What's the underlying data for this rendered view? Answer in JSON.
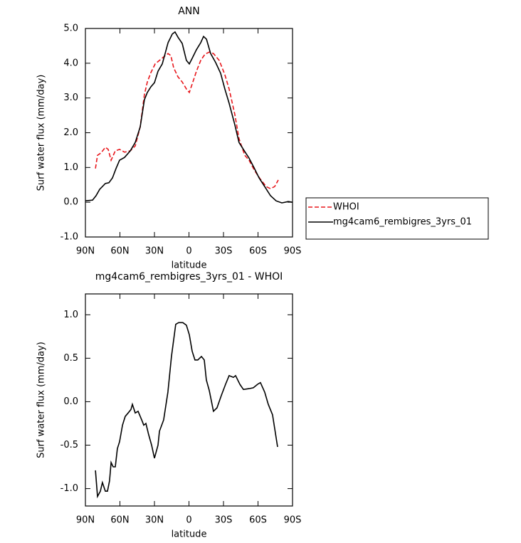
{
  "chart_data": [
    {
      "type": "line",
      "title": "ANN",
      "xlabel": "latitude",
      "ylabel": "Surf water flux (mm/day)",
      "xlim": [
        90,
        -90
      ],
      "xticks": [
        {
          "value": 90,
          "label": "90N"
        },
        {
          "value": 60,
          "label": "60N"
        },
        {
          "value": 30,
          "label": "30N"
        },
        0,
        {
          "value": -30,
          "label": "30S"
        },
        {
          "value": -60,
          "label": "60S"
        },
        {
          "value": -90,
          "label": "90S"
        }
      ],
      "ylim": [
        -1,
        5
      ],
      "yticks": [
        {
          "value": -1,
          "label": "-1.0"
        },
        {
          "value": 0,
          "label": "0.0"
        },
        {
          "value": 1,
          "label": "1.0"
        },
        {
          "value": 2,
          "label": "2.0"
        },
        {
          "value": 3,
          "label": "3.0"
        },
        {
          "value": 4,
          "label": "4.0"
        },
        {
          "value": 5,
          "label": "5.0"
        }
      ],
      "legend": "outside-right",
      "series": [
        {
          "name": "WHOI",
          "color": "#e8161b",
          "line_style": "dashed",
          "x": [
            81.3,
            79.5,
            76.4,
            72.7,
            70.2,
            67.7,
            64.0,
            60.3,
            56.0,
            51.0,
            46.7,
            42.4,
            38.7,
            36.2,
            33.1,
            29.4,
            25.7,
            22.0,
            18.2,
            15.8,
            13.3,
            9.6,
            5.9,
            2.2,
            -0.3,
            -2.8,
            -6.5,
            -10.2,
            -13.9,
            -17.6,
            -21.3,
            -26.3,
            -31.2,
            -34.9,
            -39.8,
            -43.5,
            -48.5,
            -52.2,
            -57.2,
            -62.1,
            -67.1,
            -70.8,
            -74.5,
            -77.6
          ],
          "values": [
            0.97,
            1.35,
            1.42,
            1.58,
            1.52,
            1.21,
            1.48,
            1.52,
            1.44,
            1.48,
            1.62,
            2.17,
            3.1,
            3.46,
            3.73,
            3.98,
            4.08,
            4.18,
            4.28,
            4.22,
            3.87,
            3.61,
            3.46,
            3.26,
            3.16,
            3.4,
            3.77,
            4.08,
            4.26,
            4.32,
            4.28,
            4.08,
            3.67,
            3.26,
            2.54,
            1.83,
            1.35,
            1.21,
            0.9,
            0.66,
            0.45,
            0.39,
            0.45,
            0.64
          ]
        },
        {
          "name": "mg4cam6_rembigres_3yrs_01",
          "color": "#000000",
          "line_style": "solid",
          "x": [
            90,
            83.8,
            80.7,
            77.6,
            72.7,
            69.6,
            66.5,
            63.4,
            60.3,
            56.0,
            51.0,
            46.7,
            42.4,
            38.7,
            36.2,
            33.1,
            30.0,
            26.9,
            23.2,
            20.7,
            18.2,
            14.5,
            12.1,
            9.6,
            5.9,
            2.2,
            -0.3,
            -2.8,
            -6.5,
            -10.2,
            -12.7,
            -15.2,
            -18.8,
            -23.2,
            -27.5,
            -31.2,
            -34.9,
            -39.8,
            -43.5,
            -48.5,
            -52.2,
            -56.6,
            -60.9,
            -65.8,
            -70.8,
            -75.7,
            -80.7,
            -86.3,
            -90
          ],
          "values": [
            0.04,
            0.06,
            0.19,
            0.37,
            0.54,
            0.56,
            0.7,
            0.97,
            1.21,
            1.29,
            1.48,
            1.72,
            2.17,
            2.95,
            3.16,
            3.32,
            3.44,
            3.77,
            3.98,
            4.28,
            4.59,
            4.84,
            4.9,
            4.75,
            4.57,
            4.08,
            3.98,
            4.14,
            4.39,
            4.59,
            4.77,
            4.69,
            4.28,
            4.02,
            3.71,
            3.26,
            2.85,
            2.24,
            1.72,
            1.46,
            1.27,
            0.99,
            0.7,
            0.45,
            0.19,
            0.04,
            -0.02,
            0.02,
            0.0
          ]
        }
      ]
    },
    {
      "type": "line",
      "title": "mg4cam6_rembigres_3yrs_01 - WHOI",
      "xlabel": "latitude",
      "ylabel": "Surf water flux (mm/day)",
      "xlim": [
        90,
        -90
      ],
      "xticks": [
        {
          "value": 90,
          "label": "90N"
        },
        {
          "value": 60,
          "label": "60N"
        },
        {
          "value": 30,
          "label": "30N"
        },
        0,
        {
          "value": -30,
          "label": "30S"
        },
        {
          "value": -60,
          "label": "60S"
        },
        {
          "value": -90,
          "label": "90S"
        }
      ],
      "ylim": [
        -1.2,
        1.24
      ],
      "yticks": [
        {
          "value": -1,
          "label": "-1.0"
        },
        -0.5,
        {
          "value": 0,
          "label": "0.0"
        },
        0.5,
        {
          "value": 1,
          "label": "1.0"
        }
      ],
      "color": "#000000",
      "x": [
        81.3,
        79.5,
        77.0,
        75.2,
        72.7,
        70.8,
        69.0,
        67.7,
        65.9,
        64.0,
        62.2,
        60.3,
        57.8,
        55.4,
        52.9,
        50.4,
        49.2,
        46.7,
        44.2,
        41.1,
        39.3,
        37.4,
        35.0,
        32.5,
        30.0,
        26.9,
        25.7,
        22.0,
        18.3,
        15.2,
        11.5,
        9.0,
        5.3,
        2.2,
        -0.3,
        -2.8,
        -5.2,
        -7.7,
        -10.8,
        -13.3,
        -15.1,
        -17.6,
        -21.3,
        -24.4,
        -28.1,
        -31.8,
        -34.9,
        -38.6,
        -40.5,
        -44.2,
        -47.3,
        -52.2,
        -55.9,
        -59.6,
        -62.1,
        -65.8,
        -68.9,
        -72.6,
        -77.0
      ],
      "values": [
        -0.79,
        -1.09,
        -1.03,
        -0.93,
        -1.03,
        -1.03,
        -0.91,
        -0.7,
        -0.75,
        -0.75,
        -0.54,
        -0.46,
        -0.27,
        -0.17,
        -0.13,
        -0.09,
        -0.03,
        -0.13,
        -0.11,
        -0.21,
        -0.27,
        -0.25,
        -0.38,
        -0.5,
        -0.65,
        -0.5,
        -0.34,
        -0.21,
        0.11,
        0.52,
        0.89,
        0.91,
        0.91,
        0.88,
        0.77,
        0.58,
        0.48,
        0.48,
        0.52,
        0.48,
        0.25,
        0.13,
        -0.11,
        -0.07,
        0.07,
        0.2,
        0.3,
        0.28,
        0.3,
        0.2,
        0.14,
        0.15,
        0.16,
        0.2,
        0.22,
        0.11,
        -0.03,
        -0.15,
        -0.52
      ]
    }
  ]
}
